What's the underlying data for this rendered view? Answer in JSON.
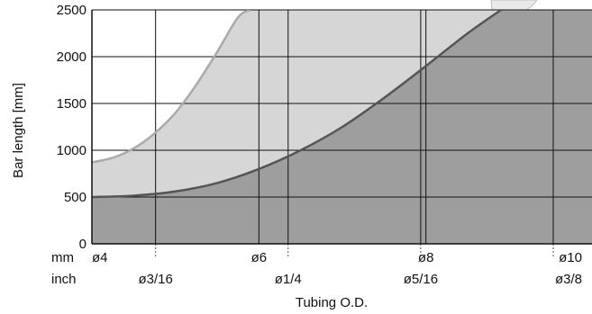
{
  "chart_data": {
    "type": "area",
    "xlabel": "Tubing O.D.",
    "ylabel": "Bar length [mm]",
    "xlim": [
      4,
      10
    ],
    "ylim": [
      0,
      2500
    ],
    "yticks": [
      {
        "value": 0,
        "label": "0"
      },
      {
        "value": 500,
        "label": "500"
      },
      {
        "value": 1000,
        "label": "1000"
      },
      {
        "value": 1500,
        "label": "1500"
      },
      {
        "value": 2000,
        "label": "2000"
      },
      {
        "value": 2500,
        "label": "2500"
      }
    ],
    "row_labels": {
      "mm": "mm",
      "inch": "inch"
    },
    "mm_ticks": [
      {
        "value": 4,
        "label": "ø4"
      },
      {
        "value": 6,
        "label": "ø6"
      },
      {
        "value": 8,
        "label": "ø8"
      },
      {
        "value": 10,
        "label": "ø10"
      }
    ],
    "inch_ticks": [
      {
        "value": 4.7625,
        "label": "ø3/16"
      },
      {
        "value": 6.35,
        "label": "ø1/4"
      },
      {
        "value": 7.9375,
        "label": "ø5/16"
      },
      {
        "value": 9.525,
        "label": "ø3/8"
      }
    ],
    "grid": true,
    "series": [
      {
        "color": "#aaaaaa",
        "fill": "#d6d6d6",
        "x": [
          4,
          4.25,
          4.5,
          4.75,
          5,
          5.25,
          5.5,
          5.75,
          5.9
        ],
        "y": [
          870,
          920,
          1020,
          1180,
          1400,
          1700,
          2050,
          2420,
          2500
        ]
      },
      {
        "color": "#555555",
        "fill": "#9e9e9e",
        "x": [
          4,
          4.5,
          5,
          5.5,
          6,
          6.5,
          7,
          7.5,
          8,
          8.5,
          8.9
        ],
        "y": [
          500,
          515,
          560,
          650,
          800,
          1000,
          1250,
          1560,
          1900,
          2250,
          2500
        ]
      }
    ],
    "colors": {
      "grid": "#111111",
      "axis": "#111111",
      "background": "#ffffff"
    }
  }
}
